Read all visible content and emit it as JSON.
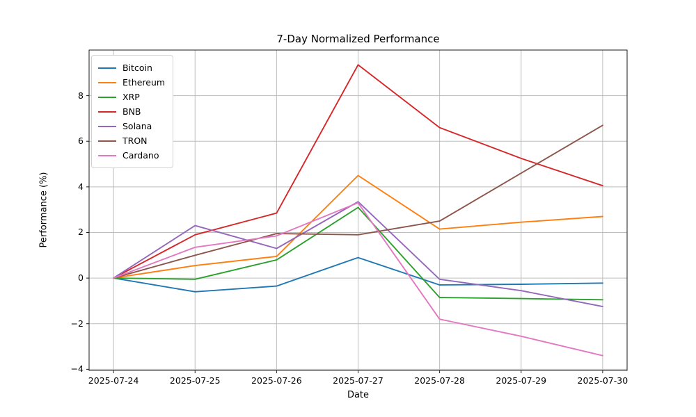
{
  "chart_data": {
    "type": "line",
    "title": "7-Day Normalized Performance",
    "xlabel": "Date",
    "ylabel": "Performance (%)",
    "x": [
      "2025-07-24",
      "2025-07-25",
      "2025-07-26",
      "2025-07-27",
      "2025-07-28",
      "2025-07-29",
      "2025-07-30"
    ],
    "series": [
      {
        "name": "Bitcoin",
        "color": "#1f77b4",
        "values": [
          0.0,
          -0.6,
          -0.35,
          0.9,
          -0.3,
          -0.27,
          -0.22
        ]
      },
      {
        "name": "Ethereum",
        "color": "#ff7f0e",
        "values": [
          0.0,
          0.55,
          0.95,
          4.5,
          2.15,
          2.45,
          2.7
        ]
      },
      {
        "name": "XRP",
        "color": "#2ca02c",
        "values": [
          0.0,
          -0.05,
          0.8,
          3.1,
          -0.85,
          -0.9,
          -0.95
        ]
      },
      {
        "name": "BNB",
        "color": "#d62728",
        "values": [
          0.0,
          1.9,
          2.85,
          9.35,
          6.6,
          5.25,
          4.05
        ]
      },
      {
        "name": "Solana",
        "color": "#9467bd",
        "values": [
          0.0,
          2.3,
          1.3,
          3.35,
          -0.05,
          -0.55,
          -1.25
        ]
      },
      {
        "name": "TRON",
        "color": "#8c564b",
        "values": [
          0.0,
          1.0,
          1.95,
          1.9,
          2.5,
          4.6,
          6.7
        ]
      },
      {
        "name": "Cardano",
        "color": "#e377c2",
        "values": [
          0.0,
          1.35,
          1.85,
          3.3,
          -1.8,
          -2.55,
          -3.4
        ]
      }
    ],
    "ylim": [
      -4.05,
      10.0
    ],
    "yticks": [
      -4,
      -2,
      0,
      2,
      4,
      6,
      8
    ],
    "grid": true,
    "grid_color": "#bdbdbd",
    "spine_color": "#1a1a1a",
    "legend_position": "upper left"
  }
}
